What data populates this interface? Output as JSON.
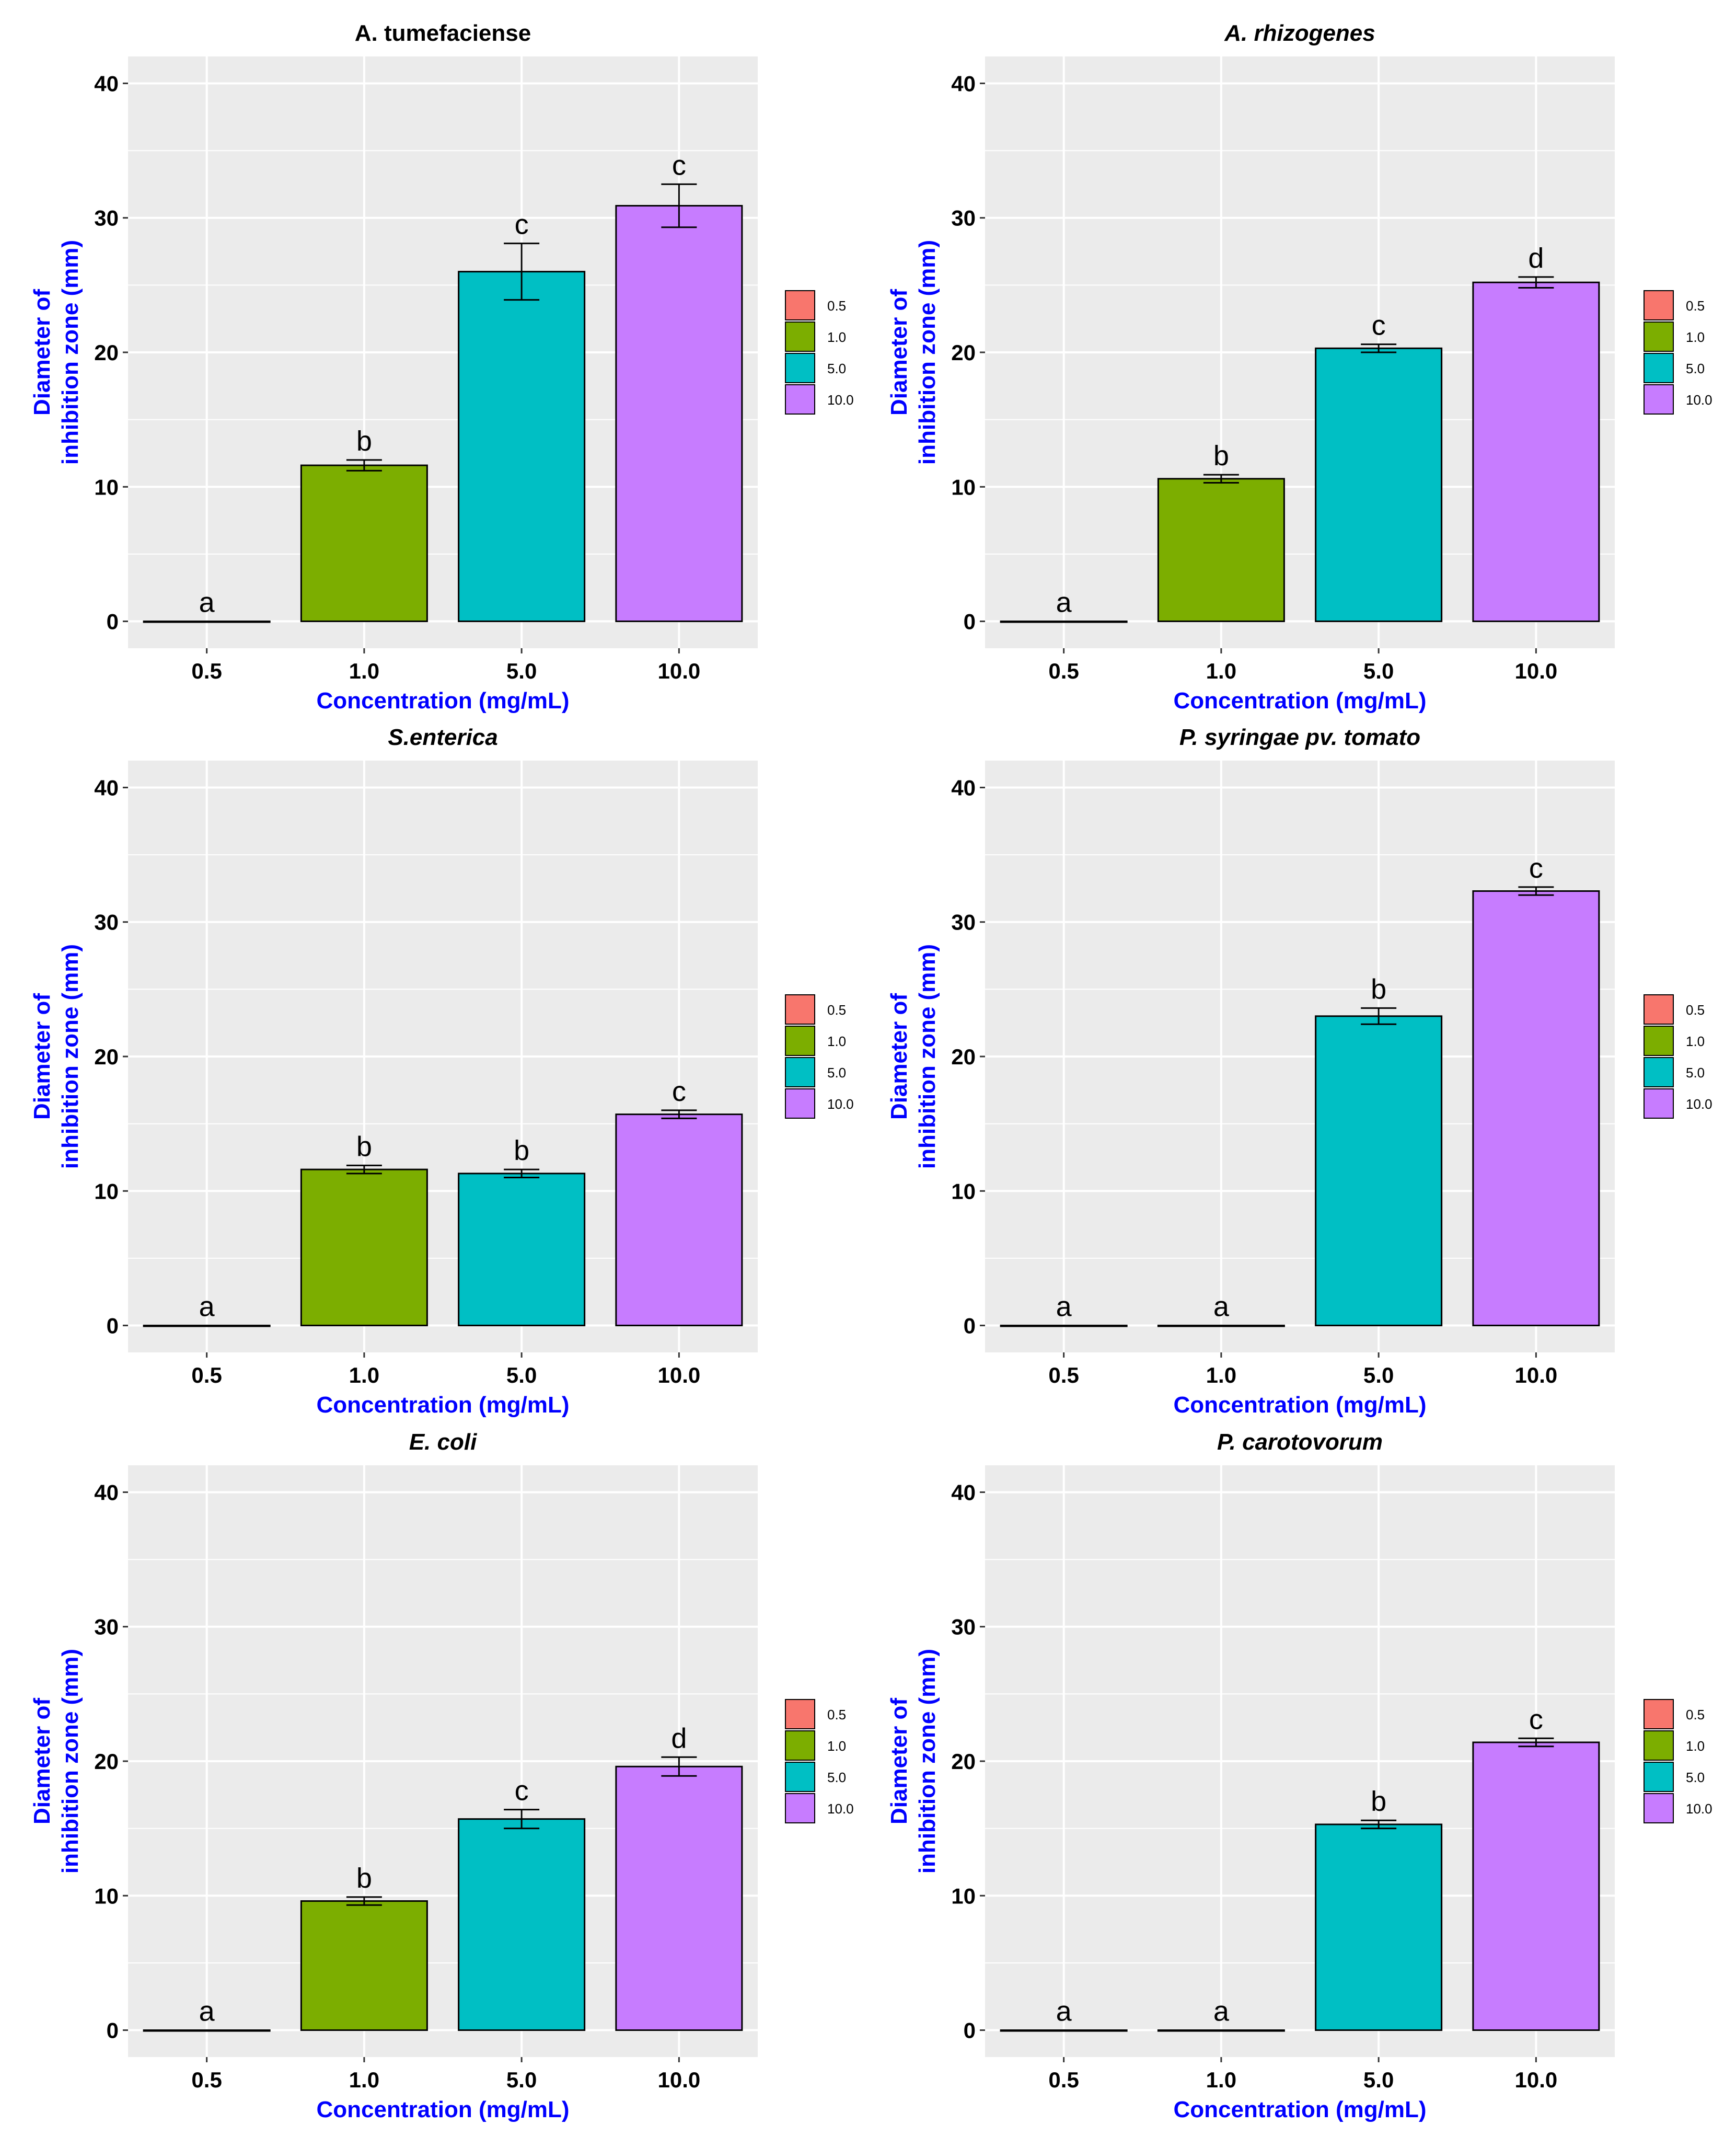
{
  "legend_labels": [
    "0.5",
    "1.0",
    "5.0",
    "10.0"
  ],
  "colors": {
    "0.5": "#F8766D",
    "1.0": "#7CAE00",
    "5.0": "#00BFC4",
    "10.0": "#C77CFF",
    "panel_background": "#EBEBEB",
    "grid": "#FFFFFF",
    "axis_title": "#0000FF"
  },
  "chart_data": [
    {
      "type": "bar",
      "title": "A. tumefaciense",
      "title_italic": false,
      "categories": [
        "0.5",
        "1.0",
        "5.0",
        "10.0"
      ],
      "values": [
        0,
        11.6,
        26.0,
        30.9
      ],
      "errors": [
        0,
        0.4,
        2.1,
        1.6
      ],
      "letters": [
        "a",
        "b",
        "c",
        "c"
      ],
      "xlabel": "Concentration (mg/mL)",
      "ylabel_lines": [
        "Diameter of",
        "inhibition zone (mm)"
      ],
      "yticks": [
        "0",
        "10",
        "20",
        "30",
        "40"
      ],
      "ylim": [
        -2,
        42
      ]
    },
    {
      "type": "bar",
      "title": "A. rhizogenes",
      "title_italic": true,
      "categories": [
        "0.5",
        "1.0",
        "5.0",
        "10.0"
      ],
      "values": [
        0,
        10.6,
        20.3,
        25.2
      ],
      "errors": [
        0,
        0.3,
        0.3,
        0.4
      ],
      "letters": [
        "a",
        "b",
        "c",
        "d"
      ],
      "xlabel": "Concentration (mg/mL)",
      "ylabel_lines": [
        "Diameter of",
        "inhibition zone (mm)"
      ],
      "yticks": [
        "0",
        "10",
        "20",
        "30",
        "40"
      ],
      "ylim": [
        -2,
        42
      ]
    },
    {
      "type": "bar",
      "title": "S.enterica",
      "title_italic": true,
      "categories": [
        "0.5",
        "1.0",
        "5.0",
        "10.0"
      ],
      "values": [
        0,
        11.6,
        11.3,
        15.7
      ],
      "errors": [
        0,
        0.3,
        0.3,
        0.3
      ],
      "letters": [
        "a",
        "b",
        "b",
        "c"
      ],
      "xlabel": "Concentration (mg/mL)",
      "ylabel_lines": [
        "Diameter of",
        "inhibition zone (mm)"
      ],
      "yticks": [
        "0",
        "10",
        "20",
        "30",
        "40"
      ],
      "ylim": [
        -2,
        42
      ]
    },
    {
      "type": "bar",
      "title": "P. syringae pv. tomato",
      "title_italic": true,
      "categories": [
        "0.5",
        "1.0",
        "5.0",
        "10.0"
      ],
      "values": [
        0,
        0,
        23.0,
        32.3
      ],
      "errors": [
        0,
        0,
        0.6,
        0.3
      ],
      "letters": [
        "a",
        "a",
        "b",
        "c"
      ],
      "xlabel": "Concentration (mg/mL)",
      "ylabel_lines": [
        "Diameter of",
        "inhibition zone (mm)"
      ],
      "yticks": [
        "0",
        "10",
        "20",
        "30",
        "40"
      ],
      "ylim": [
        -2,
        42
      ]
    },
    {
      "type": "bar",
      "title": "E. coli",
      "title_italic": true,
      "categories": [
        "0.5",
        "1.0",
        "5.0",
        "10.0"
      ],
      "values": [
        0,
        9.6,
        15.7,
        19.6
      ],
      "errors": [
        0,
        0.3,
        0.7,
        0.7
      ],
      "letters": [
        "a",
        "b",
        "c",
        "d"
      ],
      "xlabel": "Concentration (mg/mL)",
      "ylabel_lines": [
        "Diameter of",
        "inhibition zone (mm)"
      ],
      "yticks": [
        "0",
        "10",
        "20",
        "30",
        "40"
      ],
      "ylim": [
        -2,
        42
      ]
    },
    {
      "type": "bar",
      "title": "P. carotovorum",
      "title_italic": true,
      "categories": [
        "0.5",
        "1.0",
        "5.0",
        "10.0"
      ],
      "values": [
        0,
        0,
        15.3,
        21.4
      ],
      "errors": [
        0,
        0,
        0.3,
        0.3
      ],
      "letters": [
        "a",
        "a",
        "b",
        "c"
      ],
      "xlabel": "Concentration (mg/mL)",
      "ylabel_lines": [
        "Diameter of",
        "inhibition zone (mm)"
      ],
      "yticks": [
        "0",
        "10",
        "20",
        "30",
        "40"
      ],
      "ylim": [
        -2,
        42
      ]
    }
  ]
}
